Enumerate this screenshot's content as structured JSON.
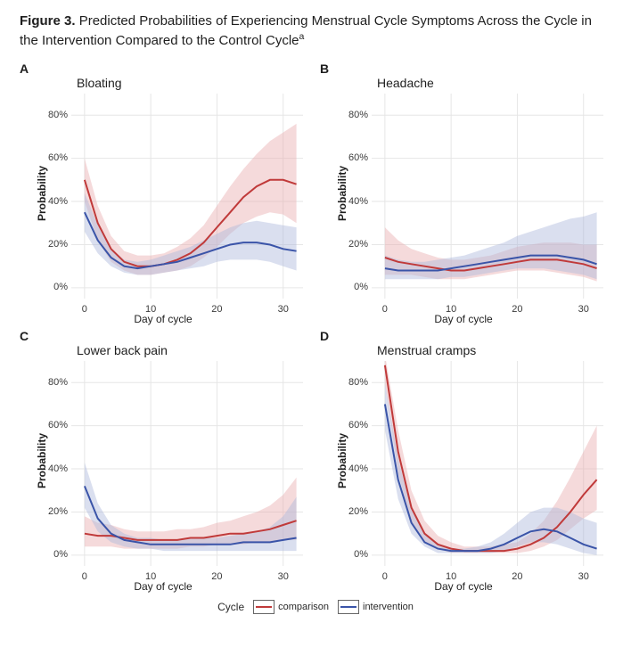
{
  "figure": {
    "label": "Figure 3.",
    "caption": "Predicted Probabilities of Experiencing Menstrual Cycle Symptoms Across the Cycle in the Intervention Compared to the Control Cycle",
    "superscript": "a"
  },
  "axes": {
    "xlabel": "Day of cycle",
    "ylabel": "Probability",
    "xlim": [
      -2,
      33
    ],
    "ylim": [
      -0.05,
      0.9
    ],
    "xticks": [
      0,
      10,
      20,
      30
    ],
    "yticks": [
      0,
      0.2,
      0.4,
      0.6,
      0.8
    ],
    "ytick_labels": [
      "0%",
      "20%",
      "40%",
      "60%",
      "80%"
    ],
    "grid_color": "#e6e6e6",
    "tick_fontsize": 11,
    "label_fontsize": 12,
    "title_fontsize": 14
  },
  "colors": {
    "comparison_line": "#c03a3a",
    "comparison_fill": "#e9aeb0",
    "intervention_line": "#3a54a8",
    "intervention_fill": "#aeb8dc",
    "fill_opacity": 0.45,
    "line_width": 2,
    "background": "#ffffff"
  },
  "legend": {
    "title": "Cycle",
    "items": [
      {
        "label": "comparison",
        "color_key": "comparison_line"
      },
      {
        "label": "intervention",
        "color_key": "intervention_line"
      }
    ]
  },
  "panels": [
    {
      "letter": "A",
      "title": "Bloating",
      "x": [
        0,
        2,
        4,
        6,
        8,
        10,
        12,
        14,
        16,
        18,
        20,
        22,
        24,
        26,
        28,
        30,
        32
      ],
      "comparison": {
        "y": [
          0.5,
          0.3,
          0.18,
          0.12,
          0.1,
          0.1,
          0.11,
          0.13,
          0.16,
          0.21,
          0.28,
          0.35,
          0.42,
          0.47,
          0.5,
          0.5,
          0.48
        ],
        "lower": [
          0.4,
          0.22,
          0.12,
          0.08,
          0.06,
          0.06,
          0.07,
          0.08,
          0.1,
          0.14,
          0.19,
          0.25,
          0.3,
          0.33,
          0.35,
          0.34,
          0.3
        ],
        "upper": [
          0.6,
          0.38,
          0.24,
          0.17,
          0.15,
          0.15,
          0.16,
          0.19,
          0.23,
          0.29,
          0.38,
          0.47,
          0.55,
          0.62,
          0.68,
          0.72,
          0.76
        ]
      },
      "intervention": {
        "y": [
          0.35,
          0.22,
          0.14,
          0.1,
          0.09,
          0.1,
          0.11,
          0.12,
          0.14,
          0.16,
          0.18,
          0.2,
          0.21,
          0.21,
          0.2,
          0.18,
          0.17
        ],
        "lower": [
          0.26,
          0.16,
          0.1,
          0.07,
          0.06,
          0.06,
          0.07,
          0.08,
          0.09,
          0.1,
          0.12,
          0.13,
          0.13,
          0.13,
          0.12,
          0.1,
          0.08
        ],
        "upper": [
          0.44,
          0.29,
          0.18,
          0.13,
          0.12,
          0.13,
          0.15,
          0.17,
          0.19,
          0.22,
          0.25,
          0.28,
          0.3,
          0.31,
          0.3,
          0.29,
          0.28
        ]
      }
    },
    {
      "letter": "B",
      "title": "Headache",
      "x": [
        0,
        2,
        4,
        6,
        8,
        10,
        12,
        14,
        16,
        18,
        20,
        22,
        24,
        26,
        28,
        30,
        32
      ],
      "comparison": {
        "y": [
          0.14,
          0.12,
          0.11,
          0.1,
          0.09,
          0.08,
          0.08,
          0.09,
          0.1,
          0.11,
          0.12,
          0.13,
          0.13,
          0.13,
          0.12,
          0.11,
          0.09
        ],
        "lower": [
          0.06,
          0.06,
          0.06,
          0.05,
          0.04,
          0.04,
          0.04,
          0.05,
          0.06,
          0.07,
          0.08,
          0.08,
          0.08,
          0.07,
          0.06,
          0.05,
          0.03
        ],
        "upper": [
          0.28,
          0.22,
          0.18,
          0.16,
          0.14,
          0.13,
          0.13,
          0.14,
          0.15,
          0.17,
          0.19,
          0.2,
          0.21,
          0.21,
          0.21,
          0.2,
          0.2
        ]
      },
      "intervention": {
        "y": [
          0.09,
          0.08,
          0.08,
          0.08,
          0.08,
          0.09,
          0.1,
          0.11,
          0.12,
          0.13,
          0.14,
          0.15,
          0.15,
          0.15,
          0.14,
          0.13,
          0.11
        ],
        "lower": [
          0.04,
          0.04,
          0.04,
          0.04,
          0.04,
          0.05,
          0.05,
          0.06,
          0.07,
          0.08,
          0.09,
          0.09,
          0.09,
          0.08,
          0.07,
          0.06,
          0.04
        ],
        "upper": [
          0.15,
          0.13,
          0.12,
          0.12,
          0.13,
          0.14,
          0.15,
          0.17,
          0.19,
          0.21,
          0.24,
          0.26,
          0.28,
          0.3,
          0.32,
          0.33,
          0.35
        ]
      }
    },
    {
      "letter": "C",
      "title": "Lower back pain",
      "x": [
        0,
        2,
        4,
        6,
        8,
        10,
        12,
        14,
        16,
        18,
        20,
        22,
        24,
        26,
        28,
        30,
        32
      ],
      "comparison": {
        "y": [
          0.1,
          0.09,
          0.09,
          0.08,
          0.07,
          0.07,
          0.07,
          0.07,
          0.08,
          0.08,
          0.09,
          0.1,
          0.1,
          0.11,
          0.12,
          0.14,
          0.16
        ],
        "lower": [
          0.04,
          0.04,
          0.04,
          0.03,
          0.03,
          0.03,
          0.03,
          0.03,
          0.04,
          0.04,
          0.05,
          0.05,
          0.05,
          0.06,
          0.06,
          0.07,
          0.07
        ],
        "upper": [
          0.18,
          0.15,
          0.14,
          0.12,
          0.11,
          0.11,
          0.11,
          0.12,
          0.12,
          0.13,
          0.15,
          0.16,
          0.18,
          0.2,
          0.23,
          0.28,
          0.36
        ]
      },
      "intervention": {
        "y": [
          0.32,
          0.17,
          0.1,
          0.07,
          0.06,
          0.05,
          0.05,
          0.05,
          0.05,
          0.05,
          0.05,
          0.05,
          0.06,
          0.06,
          0.06,
          0.07,
          0.08
        ],
        "lower": [
          0.22,
          0.11,
          0.06,
          0.04,
          0.03,
          0.03,
          0.02,
          0.02,
          0.02,
          0.02,
          0.02,
          0.02,
          0.02,
          0.02,
          0.02,
          0.02,
          0.02
        ],
        "upper": [
          0.43,
          0.24,
          0.14,
          0.1,
          0.08,
          0.08,
          0.07,
          0.07,
          0.08,
          0.08,
          0.08,
          0.09,
          0.1,
          0.11,
          0.13,
          0.18,
          0.27
        ]
      }
    },
    {
      "letter": "D",
      "title": "Menstrual cramps",
      "x": [
        0,
        2,
        4,
        6,
        8,
        10,
        12,
        14,
        16,
        18,
        20,
        22,
        24,
        26,
        28,
        30,
        32
      ],
      "comparison": {
        "y": [
          0.88,
          0.48,
          0.22,
          0.1,
          0.05,
          0.03,
          0.02,
          0.02,
          0.02,
          0.02,
          0.03,
          0.05,
          0.08,
          0.13,
          0.2,
          0.28,
          0.35
        ],
        "lower": [
          0.8,
          0.38,
          0.15,
          0.06,
          0.03,
          0.01,
          0.01,
          0.01,
          0.01,
          0.01,
          0.01,
          0.02,
          0.04,
          0.07,
          0.12,
          0.17,
          0.21
        ],
        "upper": [
          0.93,
          0.58,
          0.3,
          0.16,
          0.09,
          0.06,
          0.04,
          0.04,
          0.04,
          0.05,
          0.06,
          0.1,
          0.16,
          0.25,
          0.36,
          0.48,
          0.6
        ]
      },
      "intervention": {
        "y": [
          0.7,
          0.35,
          0.15,
          0.06,
          0.03,
          0.02,
          0.02,
          0.02,
          0.03,
          0.05,
          0.08,
          0.11,
          0.12,
          0.11,
          0.08,
          0.05,
          0.03
        ],
        "lower": [
          0.58,
          0.26,
          0.1,
          0.04,
          0.01,
          0.01,
          0.01,
          0.01,
          0.01,
          0.02,
          0.04,
          0.06,
          0.06,
          0.05,
          0.03,
          0.01,
          0.0
        ],
        "upper": [
          0.8,
          0.45,
          0.21,
          0.1,
          0.05,
          0.03,
          0.03,
          0.04,
          0.06,
          0.1,
          0.15,
          0.2,
          0.22,
          0.22,
          0.2,
          0.17,
          0.15
        ]
      }
    }
  ]
}
